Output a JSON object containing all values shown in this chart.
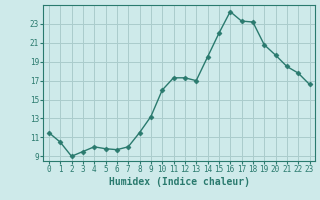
{
  "xlabel": "Humidex (Indice chaleur)",
  "x_values": [
    0,
    1,
    2,
    3,
    4,
    5,
    6,
    7,
    8,
    9,
    10,
    11,
    12,
    13,
    14,
    15,
    16,
    17,
    18,
    19,
    20,
    21,
    22,
    23
  ],
  "y_values": [
    11.5,
    10.5,
    9.0,
    9.5,
    10.0,
    9.8,
    9.7,
    10.0,
    11.5,
    13.2,
    16.0,
    17.3,
    17.3,
    17.0,
    19.5,
    22.0,
    24.3,
    23.3,
    23.2,
    20.8,
    19.7,
    18.5,
    17.8,
    16.6
  ],
  "line_color": "#2a7a6e",
  "marker": "D",
  "marker_size": 2.5,
  "line_width": 1.0,
  "bg_color": "#ceeaea",
  "grid_color": "#aacccc",
  "tick_color": "#2a7a6e",
  "label_color": "#2a7a6e",
  "ylim": [
    8.5,
    25.0
  ],
  "yticks": [
    9,
    11,
    13,
    15,
    17,
    19,
    21,
    23
  ],
  "xlim": [
    -0.5,
    23.5
  ],
  "xticks": [
    0,
    1,
    2,
    3,
    4,
    5,
    6,
    7,
    8,
    9,
    10,
    11,
    12,
    13,
    14,
    15,
    16,
    17,
    18,
    19,
    20,
    21,
    22,
    23
  ],
  "tick_fontsize": 5.5,
  "xlabel_fontsize": 7.0
}
